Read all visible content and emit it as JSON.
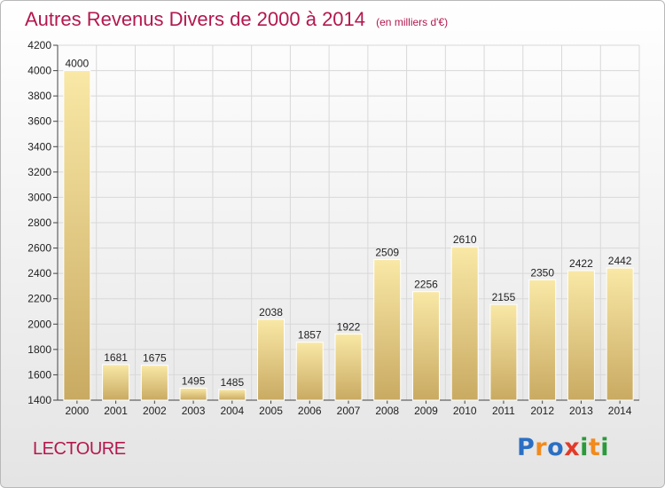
{
  "header": {
    "title": "Autres Revenus Divers de 2000 à 2014",
    "subtitle": "(en milliers d'€)"
  },
  "footer": {
    "place": "LECTOURE",
    "logo_text": "Proxiti",
    "logo_colors": [
      "#2a6fc4",
      "#f28a1c",
      "#2a6fc4",
      "#e23a2a",
      "#2a9a3a",
      "#f28a1c",
      "#2a9a3a"
    ]
  },
  "colors": {
    "title": "#b3184f",
    "bar_light": "#f9e8a6",
    "bar_dark": "#c9aa62",
    "grid": "#d8d8d8"
  },
  "chart_data": {
    "type": "bar",
    "title": "Autres Revenus Divers de 2000 à 2014",
    "xlabel": "",
    "ylabel": "",
    "categories": [
      "2000",
      "2001",
      "2002",
      "2003",
      "2004",
      "2005",
      "2006",
      "2007",
      "2008",
      "2009",
      "2010",
      "2011",
      "2012",
      "2013",
      "2014"
    ],
    "values": [
      4000,
      1681,
      1675,
      1495,
      1485,
      2038,
      1857,
      1922,
      2509,
      2256,
      2610,
      2155,
      2350,
      2422,
      2442
    ],
    "ylim": [
      1400,
      4200
    ],
    "yticks": [
      1400,
      1600,
      1800,
      2000,
      2200,
      2400,
      2600,
      2800,
      3000,
      3200,
      3400,
      3600,
      3800,
      4000,
      4200
    ],
    "grid": true,
    "legend": "none"
  }
}
